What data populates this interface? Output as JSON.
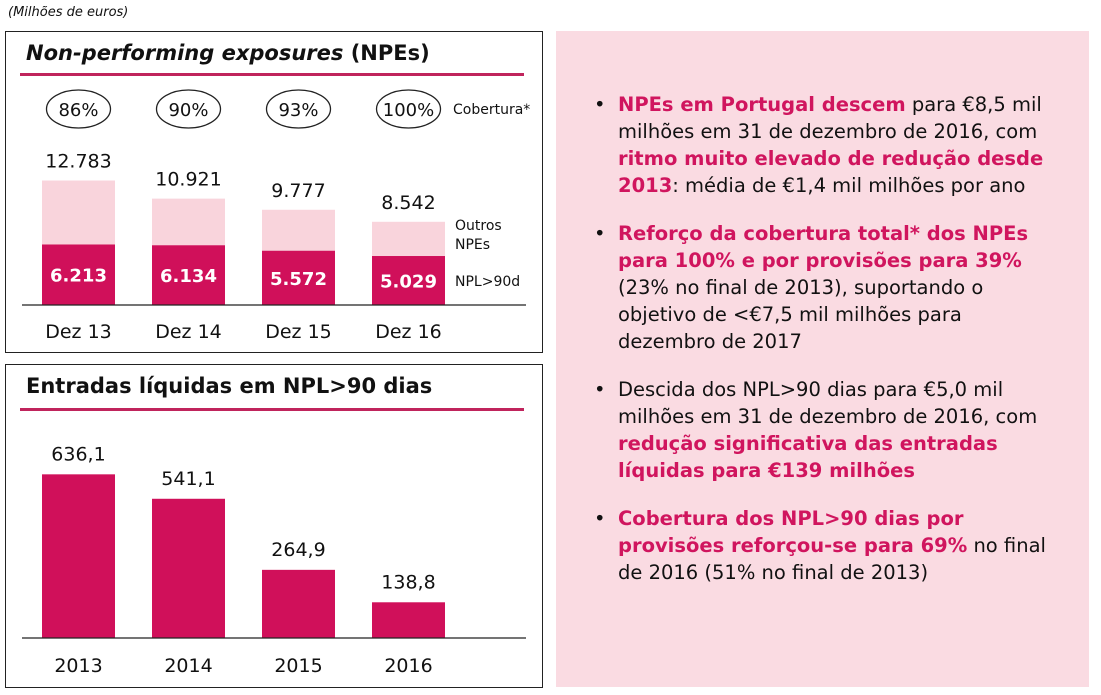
{
  "units_label": "(Milhões de euros)",
  "chart_data": [
    {
      "type": "bar",
      "title_italic": "Non-performing exposures",
      "title_rest": " (NPEs)",
      "categories": [
        "Dez 13",
        "Dez 14",
        "Dez 15",
        "Dez 16"
      ],
      "totals": [
        "12.783",
        "10.921",
        "9.777",
        "8.542"
      ],
      "total_values": [
        12783,
        10921,
        9777,
        8542
      ],
      "coverage": [
        "86%",
        "90%",
        "93%",
        "100%"
      ],
      "coverage_label": "Cobertura*",
      "series": [
        {
          "name": "NPL>90d",
          "values": [
            6213,
            6134,
            5572,
            5029
          ],
          "labels": [
            "6.213",
            "6.134",
            "5.572",
            "5.029"
          ],
          "color": "#d0105a"
        },
        {
          "name": "Outros NPEs",
          "legend_lines": [
            "Outros",
            "NPEs"
          ],
          "values": [
            6570,
            4787,
            4205,
            3513
          ],
          "color": "#f9d4dc"
        }
      ]
    },
    {
      "type": "bar",
      "title": "Entradas líquidas em NPL>90 dias",
      "categories": [
        "2013",
        "2014",
        "2015",
        "2016"
      ],
      "values": [
        636.1,
        541.1,
        264.9,
        138.8
      ],
      "labels": [
        "636,1",
        "541,1",
        "264,9",
        "138,8"
      ],
      "color": "#d0105a"
    }
  ],
  "bullets": [
    {
      "segments": [
        {
          "text": "NPEs em Portugal descem",
          "hl": true
        },
        {
          "text": " para €8,5 mil milhões em 31 de dezembro de 2016, com ",
          "hl": false
        },
        {
          "text": "ritmo muito elevado de redução desde 2013",
          "hl": true
        },
        {
          "text": ": média de €1,4 mil milhões por ano",
          "hl": false
        }
      ]
    },
    {
      "segments": [
        {
          "text": "Reforço da cobertura total* dos NPEs para 100% e por provisões para 39%",
          "hl": true
        },
        {
          "text": " (23% no final de 2013), suportando o objetivo de <€7,5 mil milhões para dezembro de 2017",
          "hl": false
        }
      ]
    },
    {
      "segments": [
        {
          "text": "Descida dos NPL>90 dias para €5,0 mil milhões em 31 de dezembro de 2016, com ",
          "hl": false
        },
        {
          "text": "redução significativa das entradas líquidas para €139 milhões",
          "hl": true
        }
      ]
    },
    {
      "segments": [
        {
          "text": "Cobertura dos NPL>90 dias por provisões reforçou-se para 69%",
          "hl": true
        },
        {
          "text": " no final de 2016 (51% no final de 2013)",
          "hl": false
        }
      ]
    }
  ]
}
